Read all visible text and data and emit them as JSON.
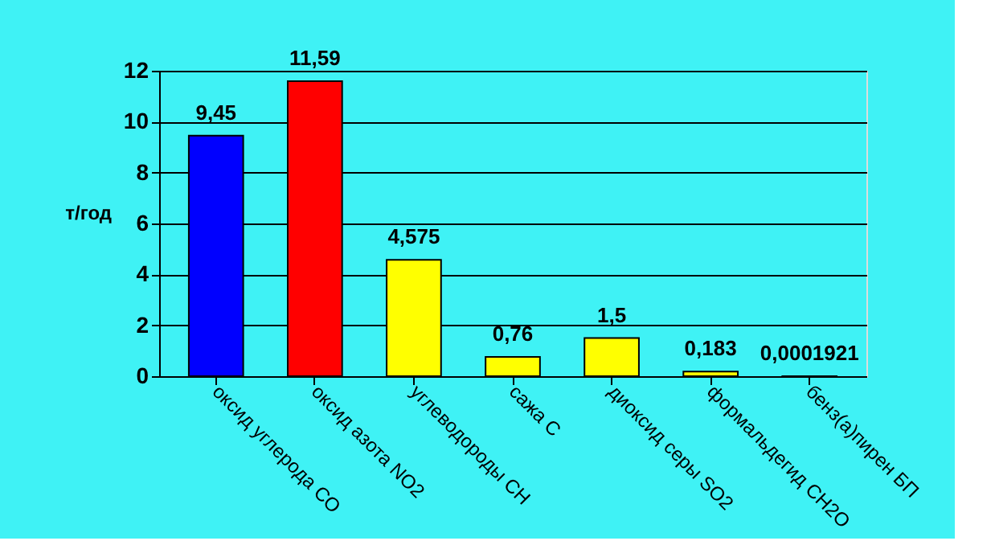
{
  "chart_data": {
    "type": "bar",
    "ylabel": "т/год",
    "categories": [
      "оксид углерода СО",
      "оксид азота NO2",
      "углеводороды СН",
      "сажа С",
      "диоксид серы SO2",
      "формальдегид СН2О",
      "бенз(а)пирен БП"
    ],
    "values": [
      9.45,
      11.59,
      4.575,
      0.76,
      1.5,
      0.183,
      0.0001921
    ],
    "colors": [
      "#0000ff",
      "#ff0000",
      "#ffff00",
      "#ffff00",
      "#ffff00",
      "#ffff00",
      "#ffff00"
    ],
    "value_labels": [
      "9,45",
      "11,59",
      "4,575",
      "0,76",
      "1,5",
      "0,183",
      "0,0001921"
    ],
    "ylim": [
      0,
      12
    ],
    "yticks": [
      0,
      2,
      4,
      6,
      8,
      10,
      12
    ],
    "grid": "y"
  }
}
